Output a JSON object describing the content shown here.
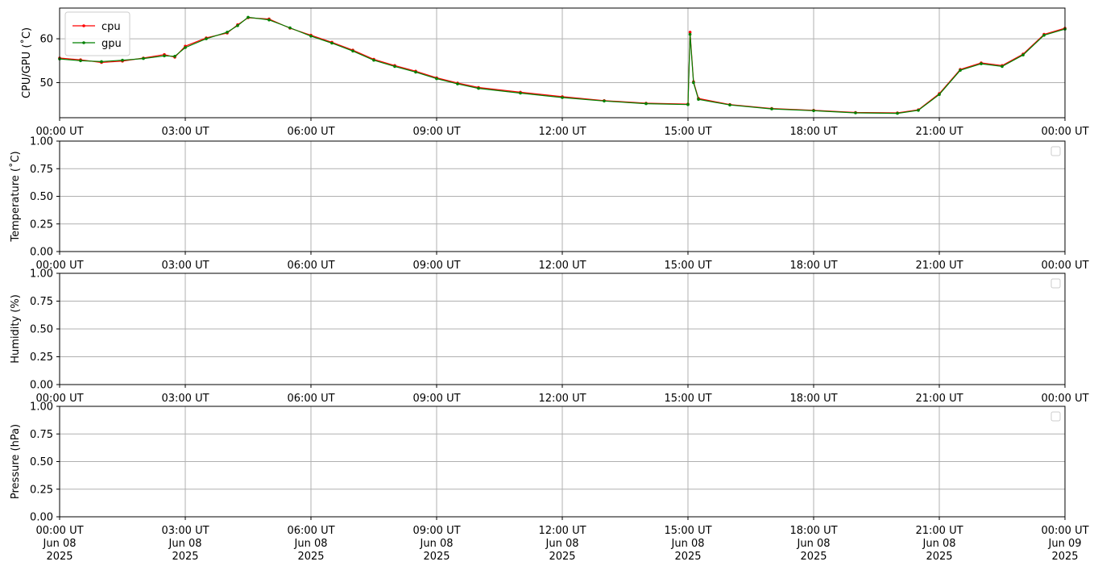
{
  "chart_data": {
    "type": "line",
    "x_range": [
      "2025-06-08T00:00:00Z",
      "2025-06-09T00:00:00Z"
    ],
    "x_tick_labels": [
      "00:00 UT",
      "03:00 UT",
      "06:00 UT",
      "09:00 UT",
      "12:00 UT",
      "15:00 UT",
      "18:00 UT",
      "21:00 UT",
      "00:00 UT"
    ],
    "x_tick_date_lines": [
      [
        "Jun 08",
        "2025"
      ],
      [
        "Jun 08",
        "2025"
      ],
      [
        "Jun 08",
        "2025"
      ],
      [
        "Jun 08",
        "2025"
      ],
      [
        "Jun 08",
        "2025"
      ],
      [
        "Jun 08",
        "2025"
      ],
      [
        "Jun 08",
        "2025"
      ],
      [
        "Jun 08",
        "2025"
      ],
      [
        "Jun 09",
        "2025"
      ]
    ],
    "grid": true,
    "panels": [
      {
        "ylabel": "CPU/GPU (˚C)",
        "ylim": [
          42,
          67
        ],
        "y_ticks": [
          50,
          60
        ],
        "y_tick_labels": [
          "50",
          "60"
        ],
        "legend": "top-left",
        "series": [
          {
            "name": "cpu",
            "color": "#ff0000",
            "points": [
              [
                "2025-06-08T00:00Z",
                55.6
              ],
              [
                "2025-06-08T00:30Z",
                55.2
              ],
              [
                "2025-06-08T01:00Z",
                54.6
              ],
              [
                "2025-06-08T01:30Z",
                54.9
              ],
              [
                "2025-06-08T02:00Z",
                55.6
              ],
              [
                "2025-06-08T02:30Z",
                56.4
              ],
              [
                "2025-06-08T02:45Z",
                55.8
              ],
              [
                "2025-06-08T03:00Z",
                58.3
              ],
              [
                "2025-06-08T03:30Z",
                60.2
              ],
              [
                "2025-06-08T04:00Z",
                61.3
              ],
              [
                "2025-06-08T04:15Z",
                63.2
              ],
              [
                "2025-06-08T04:30Z",
                64.8
              ],
              [
                "2025-06-08T05:00Z",
                64.5
              ],
              [
                "2025-06-08T05:30Z",
                62.4
              ],
              [
                "2025-06-08T06:00Z",
                60.8
              ],
              [
                "2025-06-08T06:30Z",
                59.2
              ],
              [
                "2025-06-08T07:00Z",
                57.4
              ],
              [
                "2025-06-08T07:30Z",
                55.3
              ],
              [
                "2025-06-08T08:00Z",
                53.9
              ],
              [
                "2025-06-08T08:30Z",
                52.6
              ],
              [
                "2025-06-08T09:00Z",
                51.1
              ],
              [
                "2025-06-08T09:30Z",
                49.9
              ],
              [
                "2025-06-08T10:00Z",
                48.9
              ],
              [
                "2025-06-08T11:00Z",
                47.8
              ],
              [
                "2025-06-08T12:00Z",
                46.8
              ],
              [
                "2025-06-08T13:00Z",
                45.9
              ],
              [
                "2025-06-08T14:00Z",
                45.3
              ],
              [
                "2025-06-08T15:00Z",
                45.1
              ],
              [
                "2025-06-08T15:03Z",
                61.5
              ],
              [
                "2025-06-08T15:08Z",
                50.2
              ],
              [
                "2025-06-08T15:15Z",
                46.4
              ],
              [
                "2025-06-08T16:00Z",
                45.0
              ],
              [
                "2025-06-08T17:00Z",
                44.1
              ],
              [
                "2025-06-08T18:00Z",
                43.7
              ],
              [
                "2025-06-08T19:00Z",
                43.2
              ],
              [
                "2025-06-08T20:00Z",
                43.1
              ],
              [
                "2025-06-08T20:30Z",
                43.8
              ],
              [
                "2025-06-08T21:00Z",
                47.5
              ],
              [
                "2025-06-08T21:30Z",
                53.0
              ],
              [
                "2025-06-08T22:00Z",
                54.5
              ],
              [
                "2025-06-08T22:30Z",
                53.9
              ],
              [
                "2025-06-08T23:00Z",
                56.5
              ],
              [
                "2025-06-08T23:30Z",
                61.0
              ],
              [
                "2025-06-09T00:00Z",
                62.4
              ]
            ]
          },
          {
            "name": "gpu",
            "color": "#008000",
            "points": [
              [
                "2025-06-08T00:00Z",
                55.4
              ],
              [
                "2025-06-08T00:30Z",
                55.0
              ],
              [
                "2025-06-08T01:00Z",
                54.8
              ],
              [
                "2025-06-08T01:30Z",
                55.1
              ],
              [
                "2025-06-08T02:00Z",
                55.5
              ],
              [
                "2025-06-08T02:30Z",
                56.1
              ],
              [
                "2025-06-08T02:45Z",
                56.0
              ],
              [
                "2025-06-08T03:00Z",
                58.0
              ],
              [
                "2025-06-08T03:30Z",
                60.0
              ],
              [
                "2025-06-08T04:00Z",
                61.5
              ],
              [
                "2025-06-08T04:15Z",
                63.0
              ],
              [
                "2025-06-08T04:30Z",
                64.9
              ],
              [
                "2025-06-08T05:00Z",
                64.3
              ],
              [
                "2025-06-08T05:30Z",
                62.5
              ],
              [
                "2025-06-08T06:00Z",
                60.6
              ],
              [
                "2025-06-08T06:30Z",
                59.0
              ],
              [
                "2025-06-08T07:00Z",
                57.2
              ],
              [
                "2025-06-08T07:30Z",
                55.1
              ],
              [
                "2025-06-08T08:00Z",
                53.7
              ],
              [
                "2025-06-08T08:30Z",
                52.4
              ],
              [
                "2025-06-08T09:00Z",
                50.9
              ],
              [
                "2025-06-08T09:30Z",
                49.7
              ],
              [
                "2025-06-08T10:00Z",
                48.7
              ],
              [
                "2025-06-08T11:00Z",
                47.6
              ],
              [
                "2025-06-08T12:00Z",
                46.6
              ],
              [
                "2025-06-08T13:00Z",
                45.8
              ],
              [
                "2025-06-08T14:00Z",
                45.2
              ],
              [
                "2025-06-08T15:00Z",
                45.0
              ],
              [
                "2025-06-08T15:03Z",
                61.0
              ],
              [
                "2025-06-08T15:08Z",
                50.0
              ],
              [
                "2025-06-08T15:15Z",
                46.2
              ],
              [
                "2025-06-08T16:00Z",
                44.9
              ],
              [
                "2025-06-08T17:00Z",
                44.0
              ],
              [
                "2025-06-08T18:00Z",
                43.6
              ],
              [
                "2025-06-08T19:00Z",
                43.1
              ],
              [
                "2025-06-08T20:00Z",
                43.0
              ],
              [
                "2025-06-08T20:30Z",
                43.7
              ],
              [
                "2025-06-08T21:00Z",
                47.3
              ],
              [
                "2025-06-08T21:30Z",
                52.8
              ],
              [
                "2025-06-08T22:00Z",
                54.3
              ],
              [
                "2025-06-08T22:30Z",
                53.7
              ],
              [
                "2025-06-08T23:00Z",
                56.3
              ],
              [
                "2025-06-08T23:30Z",
                60.8
              ],
              [
                "2025-06-09T00:00Z",
                62.2
              ]
            ]
          }
        ]
      },
      {
        "ylabel": "Temperature (˚C)",
        "ylim": [
          0,
          1
        ],
        "y_ticks": [
          0,
          0.25,
          0.5,
          0.75,
          1
        ],
        "y_tick_labels": [
          "0.00",
          "0.25",
          "0.50",
          "0.75",
          "1.00"
        ],
        "legend": "top-right",
        "series": []
      },
      {
        "ylabel": "Humidity (%)",
        "ylim": [
          0,
          1
        ],
        "y_ticks": [
          0,
          0.25,
          0.5,
          0.75,
          1
        ],
        "y_tick_labels": [
          "0.00",
          "0.25",
          "0.50",
          "0.75",
          "1.00"
        ],
        "legend": "top-right",
        "series": []
      },
      {
        "ylabel": "Pressure (hPa)",
        "ylim": [
          0,
          1
        ],
        "y_ticks": [
          0,
          0.25,
          0.5,
          0.75,
          1
        ],
        "y_tick_labels": [
          "0.00",
          "0.25",
          "0.50",
          "0.75",
          "1.00"
        ],
        "legend": "top-right",
        "series": []
      }
    ]
  }
}
